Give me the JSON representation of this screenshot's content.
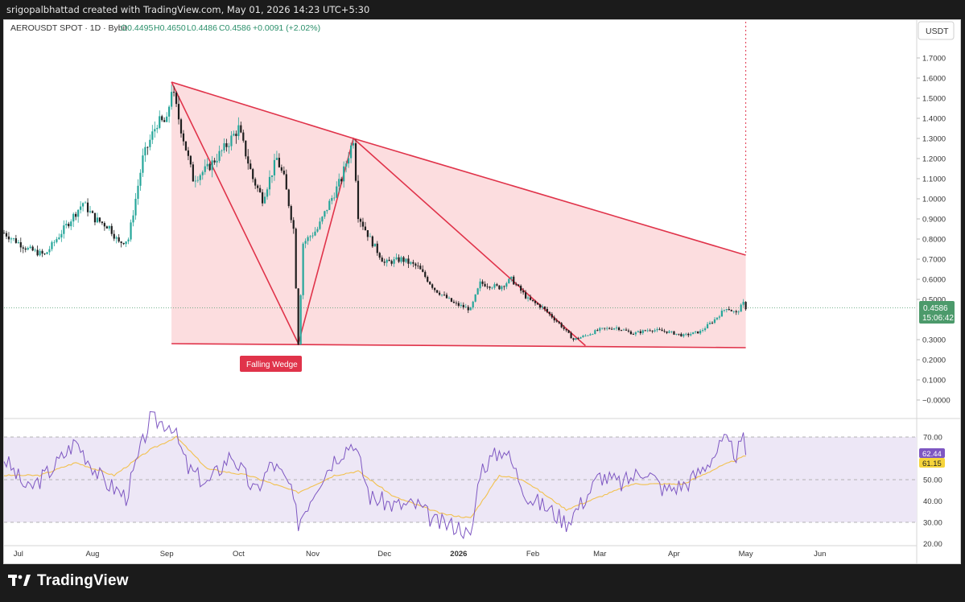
{
  "header": {
    "author_line": "srigopalbhattad created with TradingView.com, May 01, 2026 14:23 UTC+5:30"
  },
  "legend": {
    "symbol": "AEROUSDT SPOT · 1D · Bybit",
    "open": "O0.4495",
    "high": "H0.4650",
    "low": "L0.4486",
    "close": "C0.4586",
    "change": "+0.0091 (+2.02%)"
  },
  "price_axis": {
    "currency": "USDT",
    "ticks": [
      "1.7000",
      "1.6000",
      "1.5000",
      "1.4000",
      "1.3000",
      "1.2000",
      "1.1000",
      "1.0000",
      "0.9000",
      "0.8000",
      "0.7000",
      "0.6000",
      "0.5000",
      "0.3000",
      "0.2000",
      "0.1000",
      "−0.0000"
    ],
    "last_price": "0.4586",
    "countdown": "15:06:42"
  },
  "rsi_axis": {
    "ticks": [
      "70.00",
      "50.00",
      "40.00",
      "30.00",
      "20.00"
    ],
    "rsi_value": "62.44",
    "rsi_ma_value": "61.15"
  },
  "time_axis": {
    "labels": [
      "Jul",
      "Aug",
      "Sep",
      "Oct",
      "Nov",
      "Dec",
      "2026",
      "Feb",
      "Mar",
      "Apr",
      "May",
      "Jun"
    ]
  },
  "annotation": {
    "pattern_label": "Falling Wedge"
  },
  "colors": {
    "up": "#26a69a",
    "down": "#1e1e1e",
    "pattern_line": "#e0334a",
    "pattern_fill": "#fcd9dc",
    "rsi_line": "#7e57c2",
    "rsi_ma": "#f2c14e",
    "rsi_band": "#ede7f6",
    "price_label": "#4c9a6b",
    "rsi_ma_label": "#f6d43a"
  },
  "footer": {
    "brand": "TradingView"
  },
  "chart_data": {
    "type": "candlestick",
    "symbol": "AEROUSDT",
    "interval": "1D",
    "exchange": "Bybit",
    "ylim": [
      -0.05,
      1.8
    ],
    "x_range": [
      "2025-06-25",
      "2026-06-30"
    ],
    "price_path": [
      {
        "x": "2025-06-25",
        "y": 0.83
      },
      {
        "x": "2025-07-05",
        "y": 0.75
      },
      {
        "x": "2025-07-12",
        "y": 0.72
      },
      {
        "x": "2025-07-20",
        "y": 0.85
      },
      {
        "x": "2025-07-28",
        "y": 0.98
      },
      {
        "x": "2025-08-02",
        "y": 0.9
      },
      {
        "x": "2025-08-08",
        "y": 0.86
      },
      {
        "x": "2025-08-12",
        "y": 0.78
      },
      {
        "x": "2025-08-16",
        "y": 0.8
      },
      {
        "x": "2025-08-22",
        "y": 1.2
      },
      {
        "x": "2025-08-28",
        "y": 1.38
      },
      {
        "x": "2025-09-01",
        "y": 1.38
      },
      {
        "x": "2025-09-03",
        "y": 1.55
      },
      {
        "x": "2025-09-08",
        "y": 1.3
      },
      {
        "x": "2025-09-12",
        "y": 1.1
      },
      {
        "x": "2025-09-18",
        "y": 1.15
      },
      {
        "x": "2025-09-25",
        "y": 1.25
      },
      {
        "x": "2025-10-01",
        "y": 1.35
      },
      {
        "x": "2025-10-07",
        "y": 1.1
      },
      {
        "x": "2025-10-11",
        "y": 1.0
      },
      {
        "x": "2025-10-17",
        "y": 1.2
      },
      {
        "x": "2025-10-20",
        "y": 1.1
      },
      {
        "x": "2025-10-24",
        "y": 0.85
      },
      {
        "x": "2025-10-26",
        "y": 0.28
      },
      {
        "x": "2025-10-28",
        "y": 0.78
      },
      {
        "x": "2025-11-03",
        "y": 0.85
      },
      {
        "x": "2025-11-08",
        "y": 0.98
      },
      {
        "x": "2025-11-13",
        "y": 1.1
      },
      {
        "x": "2025-11-18",
        "y": 1.3
      },
      {
        "x": "2025-11-20",
        "y": 0.92
      },
      {
        "x": "2025-11-25",
        "y": 0.8
      },
      {
        "x": "2025-12-01",
        "y": 0.68
      },
      {
        "x": "2025-12-08",
        "y": 0.7
      },
      {
        "x": "2025-12-15",
        "y": 0.66
      },
      {
        "x": "2025-12-22",
        "y": 0.55
      },
      {
        "x": "2025-12-30",
        "y": 0.48
      },
      {
        "x": "2026-01-06",
        "y": 0.45
      },
      {
        "x": "2026-01-10",
        "y": 0.58
      },
      {
        "x": "2026-01-18",
        "y": 0.56
      },
      {
        "x": "2026-01-23",
        "y": 0.6
      },
      {
        "x": "2026-01-30",
        "y": 0.5
      },
      {
        "x": "2026-02-05",
        "y": 0.46
      },
      {
        "x": "2026-02-12",
        "y": 0.38
      },
      {
        "x": "2026-02-18",
        "y": 0.3
      },
      {
        "x": "2026-02-23",
        "y": 0.32
      },
      {
        "x": "2026-03-01",
        "y": 0.35
      },
      {
        "x": "2026-03-08",
        "y": 0.36
      },
      {
        "x": "2026-03-15",
        "y": 0.33
      },
      {
        "x": "2026-03-22",
        "y": 0.35
      },
      {
        "x": "2026-03-29",
        "y": 0.34
      },
      {
        "x": "2026-04-05",
        "y": 0.32
      },
      {
        "x": "2026-04-12",
        "y": 0.34
      },
      {
        "x": "2026-04-18",
        "y": 0.4
      },
      {
        "x": "2026-04-23",
        "y": 0.46
      },
      {
        "x": "2026-04-27",
        "y": 0.43
      },
      {
        "x": "2026-04-30",
        "y": 0.48
      },
      {
        "x": "2026-05-01",
        "y": 0.4586
      }
    ],
    "falling_wedge": {
      "label": "Falling Wedge",
      "upper_line": [
        {
          "x": "2025-09-03",
          "y": 1.58
        },
        {
          "x": "2025-11-18",
          "y": 1.3
        },
        {
          "x": "2026-05-01",
          "y": 0.72
        }
      ],
      "lower_line": [
        {
          "x": "2025-09-03",
          "y": 0.28
        },
        {
          "x": "2026-05-01",
          "y": 0.26
        }
      ],
      "zigzag": [
        {
          "x": "2025-09-03",
          "y": 1.58
        },
        {
          "x": "2025-10-26",
          "y": 0.28
        },
        {
          "x": "2025-11-18",
          "y": 1.3
        },
        {
          "x": "2026-02-23",
          "y": 0.27
        }
      ]
    },
    "rsi": {
      "ylim": [
        20,
        80
      ],
      "levels": [
        30,
        50,
        70
      ],
      "rsi_path": [
        {
          "x": "2025-06-25",
          "y": 60
        },
        {
          "x": "2025-07-05",
          "y": 45
        },
        {
          "x": "2025-07-15",
          "y": 55
        },
        {
          "x": "2025-07-25",
          "y": 68
        },
        {
          "x": "2025-08-05",
          "y": 50
        },
        {
          "x": "2025-08-15",
          "y": 42
        },
        {
          "x": "2025-08-25",
          "y": 78
        },
        {
          "x": "2025-09-03",
          "y": 76
        },
        {
          "x": "2025-09-10",
          "y": 55
        },
        {
          "x": "2025-09-18",
          "y": 48
        },
        {
          "x": "2025-09-28",
          "y": 62
        },
        {
          "x": "2025-10-08",
          "y": 44
        },
        {
          "x": "2025-10-15",
          "y": 58
        },
        {
          "x": "2025-10-22",
          "y": 48
        },
        {
          "x": "2025-10-26",
          "y": 30
        },
        {
          "x": "2025-11-03",
          "y": 48
        },
        {
          "x": "2025-11-10",
          "y": 60
        },
        {
          "x": "2025-11-18",
          "y": 68
        },
        {
          "x": "2025-11-25",
          "y": 42
        },
        {
          "x": "2025-12-05",
          "y": 38
        },
        {
          "x": "2025-12-15",
          "y": 38
        },
        {
          "x": "2025-12-22",
          "y": 30
        },
        {
          "x": "2026-01-02",
          "y": 28
        },
        {
          "x": "2026-01-06",
          "y": 22
        },
        {
          "x": "2026-01-10",
          "y": 55
        },
        {
          "x": "2026-01-20",
          "y": 65
        },
        {
          "x": "2026-01-30",
          "y": 42
        },
        {
          "x": "2026-02-08",
          "y": 36
        },
        {
          "x": "2026-02-15",
          "y": 30
        },
        {
          "x": "2026-02-22",
          "y": 40
        },
        {
          "x": "2026-03-01",
          "y": 52
        },
        {
          "x": "2026-03-10",
          "y": 48
        },
        {
          "x": "2026-03-20",
          "y": 55
        },
        {
          "x": "2026-03-28",
          "y": 45
        },
        {
          "x": "2026-04-06",
          "y": 48
        },
        {
          "x": "2026-04-12",
          "y": 54
        },
        {
          "x": "2026-04-18",
          "y": 62
        },
        {
          "x": "2026-04-22",
          "y": 68
        },
        {
          "x": "2026-04-27",
          "y": 62
        },
        {
          "x": "2026-04-30",
          "y": 68
        },
        {
          "x": "2026-05-01",
          "y": 62.44
        }
      ],
      "rsi_ma_path": [
        {
          "x": "2025-06-25",
          "y": 52
        },
        {
          "x": "2025-07-10",
          "y": 52
        },
        {
          "x": "2025-07-25",
          "y": 58
        },
        {
          "x": "2025-08-10",
          "y": 52
        },
        {
          "x": "2025-08-25",
          "y": 64
        },
        {
          "x": "2025-09-05",
          "y": 70
        },
        {
          "x": "2025-09-18",
          "y": 55
        },
        {
          "x": "2025-10-05",
          "y": 52
        },
        {
          "x": "2025-10-26",
          "y": 44
        },
        {
          "x": "2025-11-10",
          "y": 52
        },
        {
          "x": "2025-11-20",
          "y": 54
        },
        {
          "x": "2025-12-05",
          "y": 42
        },
        {
          "x": "2025-12-25",
          "y": 34
        },
        {
          "x": "2026-01-06",
          "y": 32
        },
        {
          "x": "2026-01-18",
          "y": 52
        },
        {
          "x": "2026-01-28",
          "y": 50
        },
        {
          "x": "2026-02-15",
          "y": 36
        },
        {
          "x": "2026-03-01",
          "y": 42
        },
        {
          "x": "2026-03-15",
          "y": 48
        },
        {
          "x": "2026-04-05",
          "y": 48
        },
        {
          "x": "2026-04-20",
          "y": 56
        },
        {
          "x": "2026-05-01",
          "y": 61.15
        }
      ]
    }
  }
}
